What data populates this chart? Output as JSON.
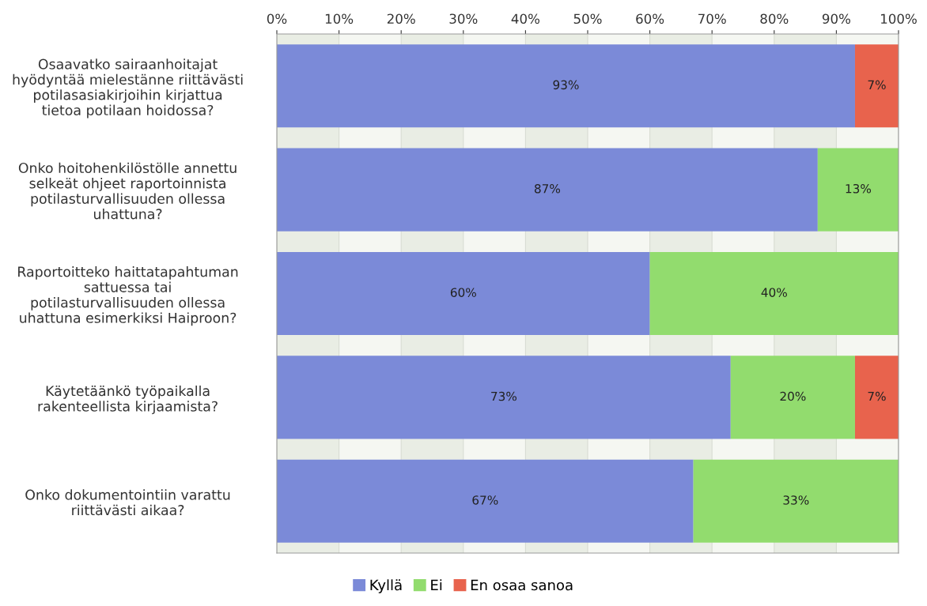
{
  "chart_data": {
    "type": "bar",
    "orientation": "horizontal",
    "stacked": true,
    "categories": [
      "Osaavatko sairaanhoitajat hyödyntää mielestänne riittävästi potilasasiakirjoihin kirjattua tietoa potilaan hoidossa?",
      "Onko hoitohenkilöstölle annettu selkeät ohjeet raportoinnista potilasturvallisuuden ollessa uhattuna?",
      "Raportoitteko haittatapahtuman sattuessa tai potilasturvallisuuden ollessa uhattuna esimerkiksi Haiproon?",
      "Käytetäänkö työpaikalla rakenteellista kirjaamista?",
      "Onko dokumentointiin varattu riittävästi aikaa?"
    ],
    "series": [
      {
        "name": "Kyllä",
        "color": "#7b8ad8",
        "values": [
          93,
          87,
          60,
          73,
          67
        ],
        "value_labels": [
          "93%",
          "87%",
          "60%",
          "73%",
          "67%"
        ]
      },
      {
        "name": "Ei",
        "color": "#92dc6e",
        "values": [
          0,
          13,
          40,
          20,
          33
        ],
        "value_labels": [
          null,
          "13%",
          "40%",
          "20%",
          "33%"
        ]
      },
      {
        "name": "En osaa sanoa",
        "color": "#e8634d",
        "values": [
          7,
          0,
          0,
          7,
          0
        ],
        "value_labels": [
          "7%",
          null,
          null,
          "7%",
          null
        ]
      }
    ],
    "xlim": [
      0,
      100
    ],
    "xticks": [
      {
        "value": 0,
        "label": "0%"
      },
      {
        "value": 10,
        "label": "10%"
      },
      {
        "value": 20,
        "label": "20%"
      },
      {
        "value": 30,
        "label": "30%"
      },
      {
        "value": 40,
        "label": "40%"
      },
      {
        "value": 50,
        "label": "50%"
      },
      {
        "value": 60,
        "label": "60%"
      },
      {
        "value": 70,
        "label": "70%"
      },
      {
        "value": 80,
        "label": "80%"
      },
      {
        "value": 90,
        "label": "90%"
      },
      {
        "value": 100,
        "label": "100%"
      }
    ],
    "grid": "x",
    "legend": "bottom"
  }
}
